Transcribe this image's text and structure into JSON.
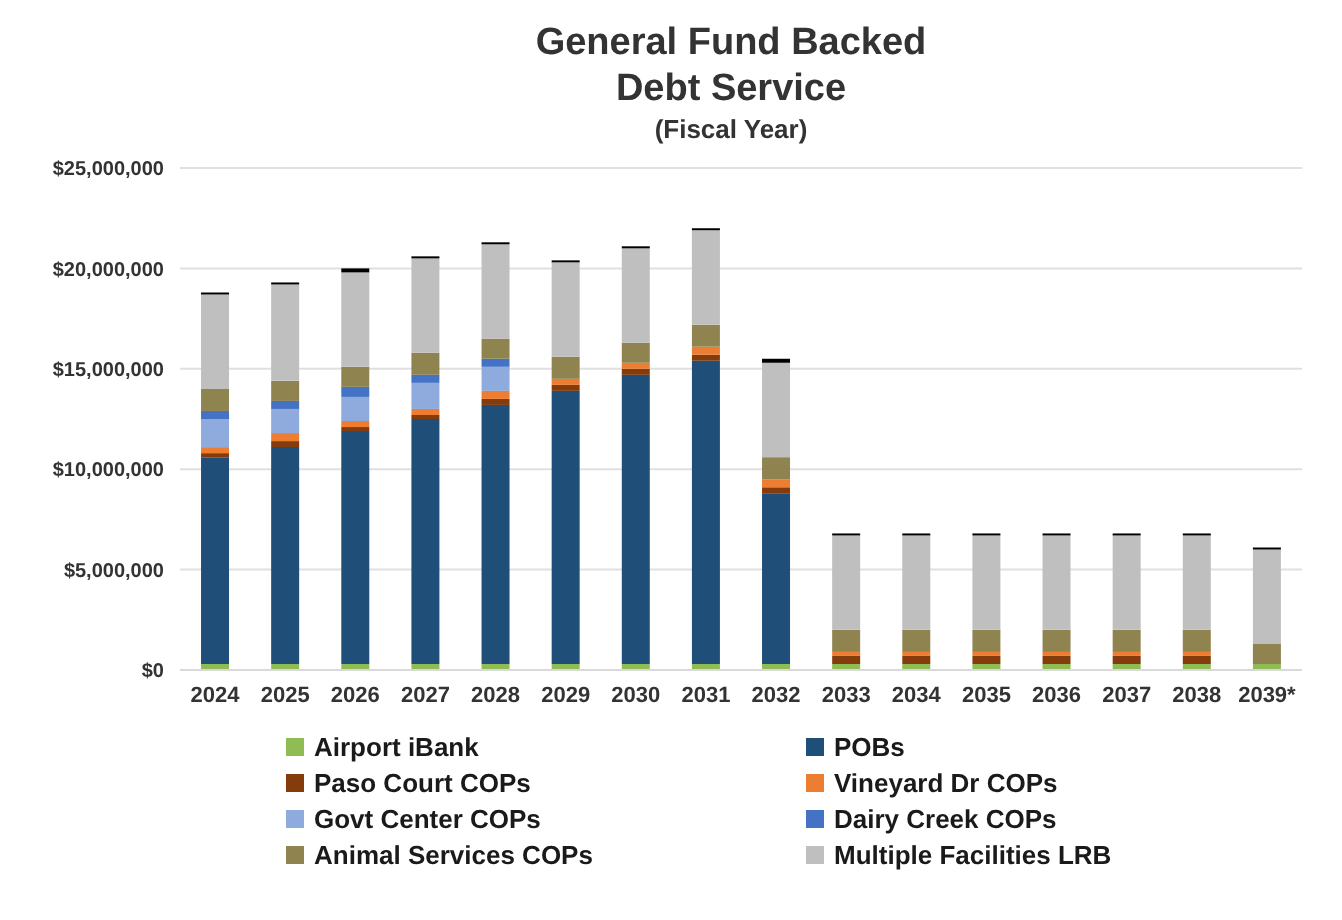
{
  "chart_data": {
    "type": "bar",
    "title": "General Fund Backed\nDebt Service",
    "subtitle": "(Fiscal Year)",
    "categories": [
      "2024",
      "2025",
      "2026",
      "2027",
      "2028",
      "2029",
      "2030",
      "2031",
      "2032",
      "2033",
      "2034",
      "2035",
      "2036",
      "2037",
      "2038",
      "2039*"
    ],
    "stacked": true,
    "series": [
      {
        "name": "Airport iBank",
        "color": "#8fbc54",
        "values": [
          300000,
          300000,
          300000,
          300000,
          300000,
          300000,
          300000,
          300000,
          300000,
          300000,
          300000,
          300000,
          300000,
          300000,
          300000,
          300000
        ]
      },
      {
        "name": "POBs",
        "color": "#1f4e79",
        "values": [
          10300000,
          10800000,
          11600000,
          12200000,
          12900000,
          13600000,
          14400000,
          15100000,
          8500000,
          null,
          null,
          null,
          null,
          null,
          null,
          null
        ]
      },
      {
        "name": "Paso Court COPs",
        "color": "#843c0c",
        "values": [
          200000,
          300000,
          200000,
          200000,
          300000,
          300000,
          300000,
          300000,
          300000,
          400000,
          400000,
          400000,
          400000,
          400000,
          400000,
          null
        ]
      },
      {
        "name": "Vineyard Dr COPs",
        "color": "#ed7d31",
        "values": [
          300000,
          400000,
          300000,
          300000,
          400000,
          300000,
          300000,
          400000,
          400000,
          200000,
          200000,
          200000,
          200000,
          200000,
          200000,
          null
        ]
      },
      {
        "name": "Govt Center COPs",
        "color": "#8faadc",
        "values": [
          1400000,
          1200000,
          1200000,
          1300000,
          1200000,
          null,
          null,
          null,
          null,
          null,
          null,
          null,
          null,
          null,
          null,
          null
        ]
      },
      {
        "name": "Dairy Creek COPs",
        "color": "#4472c4",
        "values": [
          400000,
          400000,
          500000,
          400000,
          400000,
          null,
          null,
          null,
          null,
          null,
          null,
          null,
          null,
          null,
          null,
          null
        ]
      },
      {
        "name": "Animal Services COPs",
        "color": "#8f8350",
        "values": [
          1100000,
          1000000,
          1000000,
          1100000,
          1000000,
          1100000,
          1000000,
          1100000,
          1100000,
          1100000,
          1100000,
          1100000,
          1100000,
          1100000,
          1100000,
          1000000
        ]
      },
      {
        "name": "Multiple Facilities LRB",
        "color": "#bfbfbf",
        "values": [
          4700000,
          4800000,
          4700000,
          4700000,
          4700000,
          4700000,
          4700000,
          4700000,
          4700000,
          4700000,
          4700000,
          4700000,
          4700000,
          4700000,
          4700000,
          4700000
        ]
      },
      {
        "color": "#000000",
        "values": [
          100000,
          100000,
          200000,
          100000,
          100000,
          100000,
          100000,
          100000,
          200000,
          100000,
          100000,
          100000,
          100000,
          100000,
          100000,
          100000
        ]
      }
    ],
    "ylim": [
      0,
      25000000
    ],
    "yticks": [
      {
        "value": 0,
        "label": "$0"
      },
      {
        "value": 5000000,
        "label": "$5,000,000"
      },
      {
        "value": 10000000,
        "label": "$10,000,000"
      },
      {
        "value": 15000000,
        "label": "$15,000,000"
      },
      {
        "value": 20000000,
        "label": "$20,000,000"
      },
      {
        "value": 25000000,
        "label": "$25,000,000"
      }
    ],
    "grid": "y",
    "legend": "bottom"
  }
}
